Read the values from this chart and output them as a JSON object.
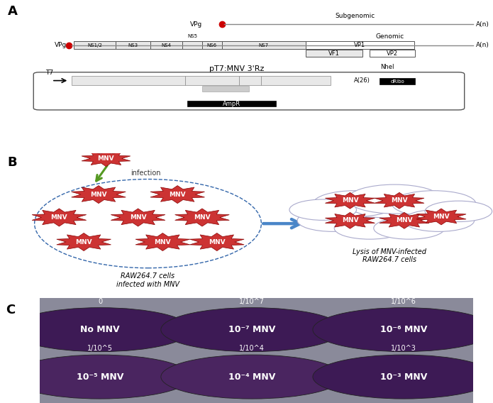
{
  "panel_A_label": "A",
  "panel_B_label": "B",
  "panel_C_label": "C",
  "subgenomic_label": "Subgenomic",
  "genomic_label": "Genomic",
  "An_label": "A(n)",
  "VPg_label": "VPg",
  "NS_segments": [
    "NS1/2",
    "NS3",
    "NS4",
    "NS5",
    "NS6",
    "NS7"
  ],
  "plasmid_label": "pT7:MNV 3'Rz",
  "T7_label": "T7",
  "NheI_label": "NheI",
  "A26_label": "A(26)",
  "dRibo_label": "dRibo",
  "AmpR_label": "AmpR",
  "cell_infected_label": "RAW264.7 cells\ninfected with MNV",
  "lysis_label": "Lysis of MNV-infected\nRAW264.7 cells",
  "infection_label": "infection",
  "plate_labels_top": [
    "0",
    "1/10^7",
    "1/10^6"
  ],
  "plate_labels_bottom": [
    "1/10^5",
    "1/10^4",
    "1/10^3"
  ],
  "bg_color": "#ffffff",
  "red_dot_color": "#cc0000",
  "arrow_color": "#4a86c8",
  "mnv_color": "#cc3333",
  "mnv_text_color": "#ffffff",
  "segment_color": "#e8e8e8",
  "segment_border": "#555555"
}
